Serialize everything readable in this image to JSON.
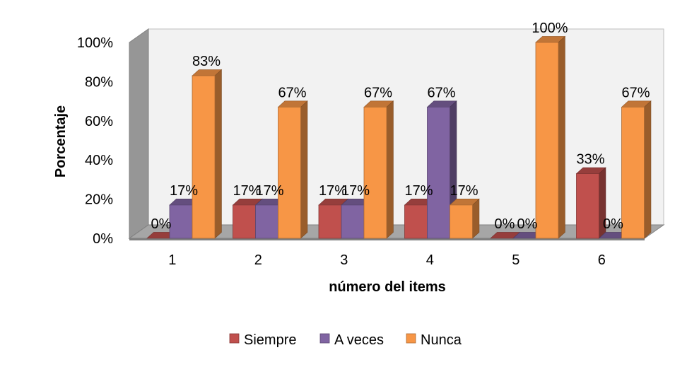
{
  "chart_data": {
    "type": "bar",
    "categories": [
      "1",
      "2",
      "3",
      "4",
      "5",
      "6"
    ],
    "series": [
      {
        "name": "Siempre",
        "values": [
          0,
          17,
          17,
          17,
          0,
          33
        ]
      },
      {
        "name": "A veces",
        "values": [
          17,
          17,
          17,
          67,
          0,
          0
        ]
      },
      {
        "name": "Nunca",
        "values": [
          83,
          67,
          67,
          17,
          100,
          67
        ]
      }
    ],
    "data_labels": [
      [
        "0%",
        "17%",
        "17%",
        "17%",
        "0%",
        "33%"
      ],
      [
        "17%",
        "17%",
        "17%",
        "67%",
        "0%",
        "0%"
      ],
      [
        "83%",
        "67%",
        "67%",
        "17%",
        "100%",
        "67%"
      ]
    ],
    "y_ticks": [
      "0%",
      "20%",
      "40%",
      "60%",
      "80%",
      "100%"
    ],
    "xlabel": "número del items",
    "ylabel": "Porcentaje",
    "ylim": [
      0,
      100
    ],
    "grid": false,
    "legend_position": "bottom",
    "style": "3d-clustered-column"
  },
  "colors": {
    "Siempre": "#c0504d",
    "A veces": "#8064a2",
    "Nunca": "#f79646",
    "wall": "#f2f2f2",
    "wall_side": "#969696",
    "floor": "#a6a6a6"
  }
}
